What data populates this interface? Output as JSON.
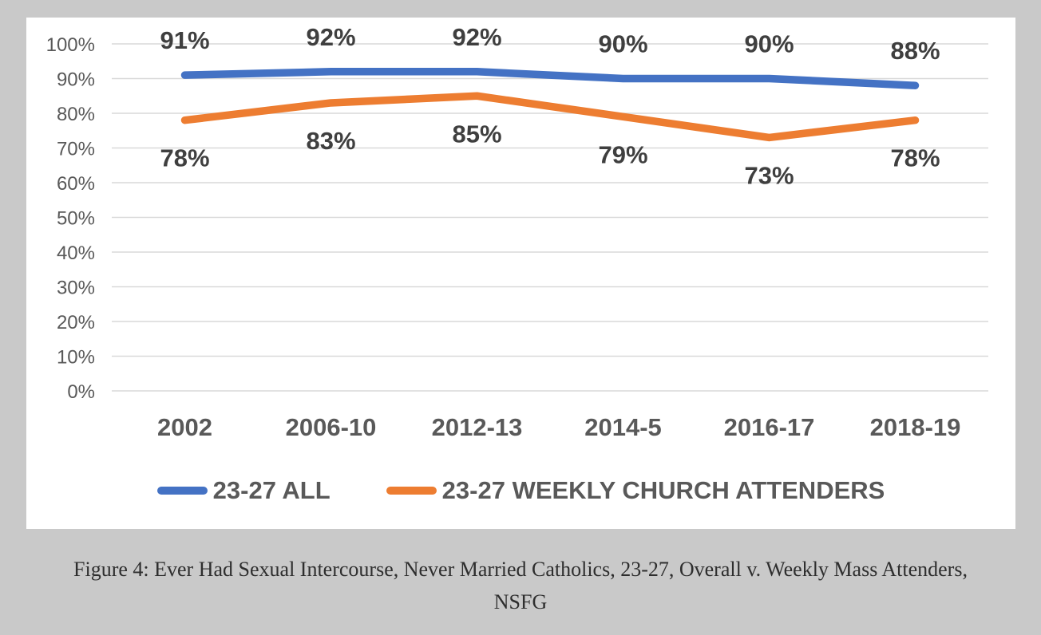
{
  "page": {
    "background": "#c9c9c9",
    "chart_background": "#ffffff"
  },
  "chart_data": {
    "type": "line",
    "categories": [
      "2002",
      "2006-10",
      "2012-13",
      "2014-5",
      "2016-17",
      "2018-19"
    ],
    "series": [
      {
        "name": "23-27 ALL",
        "color": "#4472C4",
        "values": [
          91,
          92,
          92,
          90,
          90,
          88
        ],
        "data_labels": [
          "91%",
          "92%",
          "92%",
          "90%",
          "90%",
          "88%"
        ],
        "data_label_position": "above"
      },
      {
        "name": "23-27 WEEKLY CHURCH ATTENDERS",
        "color": "#ED7D31",
        "values": [
          78,
          83,
          85,
          79,
          73,
          78
        ],
        "data_labels": [
          "78%",
          "83%",
          "85%",
          "79%",
          "73%",
          "78%"
        ],
        "data_label_position": "below"
      }
    ],
    "y_axis": {
      "ticks": [
        "100%",
        "90%",
        "80%",
        "70%",
        "60%",
        "50%",
        "40%",
        "30%",
        "20%",
        "10%",
        "0%"
      ],
      "min": 0,
      "max": 100,
      "tick_step": 10
    },
    "xlabel": "",
    "ylabel": "",
    "title": "",
    "grid": true,
    "legend_position": "bottom",
    "colors": {
      "axis_text": "#595959",
      "data_label_text": "#3f3f3f",
      "gridline": "#d9d9d9"
    }
  },
  "caption": {
    "line1": "Figure 4: Ever Had Sexual Intercourse, Never Married Catholics, 23-27, Overall v. Weekly Mass Attenders,",
    "line2": "NSFG"
  }
}
